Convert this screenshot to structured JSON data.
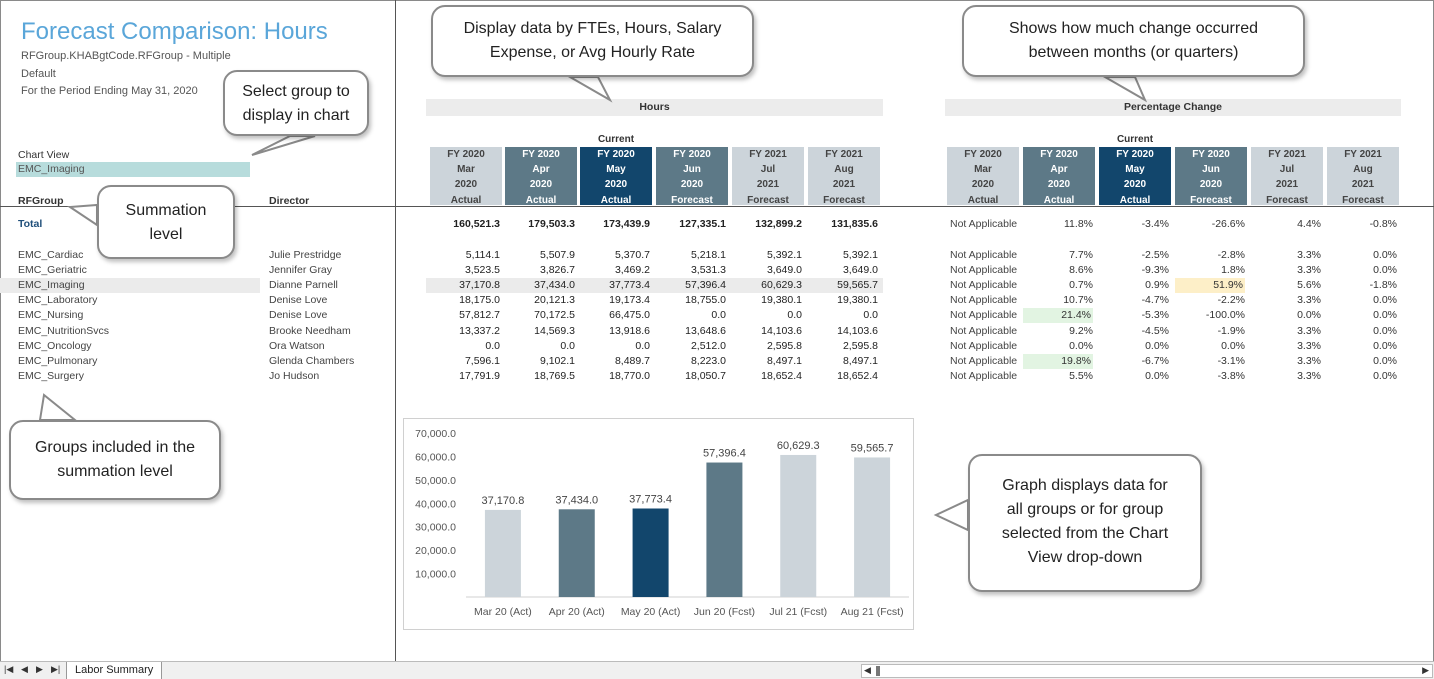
{
  "report": {
    "title": "Forecast Comparison: Hours",
    "line1": "RFGroup.KHABgtCode.RFGroup - Multiple",
    "line2": "Default",
    "line3": "For the Period Ending May 31, 2020"
  },
  "chart_view": {
    "label": "Chart View",
    "selected": "EMC_Imaging"
  },
  "columns": {
    "group": "RFGroup",
    "director": "Director"
  },
  "sections": {
    "hours": "Hours",
    "pct": "Percentage Change",
    "current": "Current"
  },
  "months": [
    {
      "fy": "FY 2020",
      "mon": "Mar",
      "yr": "2020",
      "type": "Actual"
    },
    {
      "fy": "FY 2020",
      "mon": "Apr",
      "yr": "2020",
      "type": "Actual"
    },
    {
      "fy": "FY 2020",
      "mon": "May",
      "yr": "2020",
      "type": "Actual"
    },
    {
      "fy": "FY 2020",
      "mon": "Jun",
      "yr": "2020",
      "type": "Forecast"
    },
    {
      "fy": "FY 2021",
      "mon": "Jul",
      "yr": "2021",
      "type": "Forecast"
    },
    {
      "fy": "FY 2021",
      "mon": "Aug",
      "yr": "2021",
      "type": "Forecast"
    }
  ],
  "total": {
    "label": "Total",
    "values": [
      "160,521.3",
      "179,503.3",
      "173,439.9",
      "127,335.1",
      "132,899.2",
      "131,835.6"
    ],
    "na": "Not Applicable",
    "pct": [
      "11.8%",
      "-3.4%",
      "-26.6%",
      "4.4%",
      "-0.8%"
    ]
  },
  "rows": [
    {
      "group": "EMC_Cardiac",
      "director": "Julie Prestridge",
      "values": [
        "5,114.1",
        "5,507.9",
        "5,370.7",
        "5,218.1",
        "5,392.1",
        "5,392.1"
      ],
      "na": "Not Applicable",
      "pct": [
        "7.7%",
        "-2.5%",
        "-2.8%",
        "3.3%",
        "0.0%"
      ]
    },
    {
      "group": "EMC_Geriatric",
      "director": "Jennifer Gray",
      "values": [
        "3,523.5",
        "3,826.7",
        "3,469.2",
        "3,531.3",
        "3,649.0",
        "3,649.0"
      ],
      "na": "Not Applicable",
      "pct": [
        "8.6%",
        "-9.3%",
        "1.8%",
        "3.3%",
        "0.0%"
      ]
    },
    {
      "group": "EMC_Imaging",
      "director": "Dianne Parnell",
      "values": [
        "37,170.8",
        "37,434.0",
        "37,773.4",
        "57,396.4",
        "60,629.3",
        "59,565.7"
      ],
      "na": "Not Applicable",
      "pct": [
        "0.7%",
        "0.9%",
        "51.9%",
        "5.6%",
        "-1.8%"
      ]
    },
    {
      "group": "EMC_Laboratory",
      "director": "Denise Love",
      "values": [
        "18,175.0",
        "20,121.3",
        "19,173.4",
        "18,755.0",
        "19,380.1",
        "19,380.1"
      ],
      "na": "Not Applicable",
      "pct": [
        "10.7%",
        "-4.7%",
        "-2.2%",
        "3.3%",
        "0.0%"
      ]
    },
    {
      "group": "EMC_Nursing",
      "director": "Denise Love",
      "values": [
        "57,812.7",
        "70,172.5",
        "66,475.0",
        "0.0",
        "0.0",
        "0.0"
      ],
      "na": "Not Applicable",
      "pct": [
        "21.4%",
        "-5.3%",
        "-100.0%",
        "0.0%",
        "0.0%"
      ]
    },
    {
      "group": "EMC_NutritionSvcs",
      "director": "Brooke Needham",
      "values": [
        "13,337.2",
        "14,569.3",
        "13,918.6",
        "13,648.6",
        "14,103.6",
        "14,103.6"
      ],
      "na": "Not Applicable",
      "pct": [
        "9.2%",
        "-4.5%",
        "-1.9%",
        "3.3%",
        "0.0%"
      ]
    },
    {
      "group": "EMC_Oncology",
      "director": "Ora Watson",
      "values": [
        "0.0",
        "0.0",
        "0.0",
        "2,512.0",
        "2,595.8",
        "2,595.8"
      ],
      "na": "Not Applicable",
      "pct": [
        "0.0%",
        "0.0%",
        "0.0%",
        "3.3%",
        "0.0%"
      ]
    },
    {
      "group": "EMC_Pulmonary",
      "director": "Glenda Chambers",
      "values": [
        "7,596.1",
        "9,102.1",
        "8,489.7",
        "8,223.0",
        "8,497.1",
        "8,497.1"
      ],
      "na": "Not Applicable",
      "pct": [
        "19.8%",
        "-6.7%",
        "-3.1%",
        "3.3%",
        "0.0%"
      ]
    },
    {
      "group": "EMC_Surgery",
      "director": "Jo Hudson",
      "values": [
        "17,791.9",
        "18,769.5",
        "18,770.0",
        "18,050.7",
        "18,652.4",
        "18,652.4"
      ],
      "na": "Not Applicable",
      "pct": [
        "5.5%",
        "0.0%",
        "-3.8%",
        "3.3%",
        "0.0%"
      ]
    }
  ],
  "callouts": {
    "display_by": [
      "Display data by FTEs, Hours, Salary",
      "Expense, or Avg Hourly Rate"
    ],
    "change": [
      "Shows how much change occurred",
      "between months (or quarters)"
    ],
    "select_group": [
      "Select group to",
      "display in chart"
    ],
    "summation": [
      "Summation",
      "level"
    ],
    "groups_included": [
      "Groups included in the",
      "summation level"
    ],
    "graph": [
      "Graph displays data for",
      "all groups or for group",
      "selected from the Chart",
      "View drop-down"
    ]
  },
  "chart_data": {
    "type": "bar",
    "categories": [
      "Mar 20 (Act)",
      "Apr 20 (Act)",
      "May 20 (Act)",
      "Jun 20 (Fcst)",
      "Jul 21 (Fcst)",
      "Aug 21 (Fcst)"
    ],
    "values": [
      37170.8,
      37434.0,
      37773.4,
      57396.4,
      60629.3,
      59565.7
    ],
    "data_labels": [
      "37,170.8",
      "37,434.0",
      "37,773.4",
      "57,396.4",
      "60,629.3",
      "59,565.7"
    ],
    "yticks": [
      "70,000.0",
      "60,000.0",
      "50,000.0",
      "40,000.0",
      "30,000.0",
      "20,000.0",
      "10,000.0"
    ],
    "ylim": [
      0,
      70000
    ],
    "bar_colors": [
      "#ccd4da",
      "#5d7987",
      "#12466c",
      "#5d7987",
      "#ccd4da",
      "#ccd4da"
    ],
    "title": "",
    "xlabel": "",
    "ylabel": ""
  },
  "tabs": {
    "sheet": "Labor Summary"
  }
}
